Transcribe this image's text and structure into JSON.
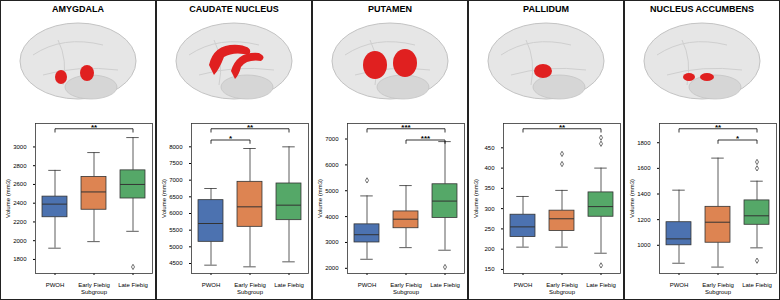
{
  "chart_data": [
    {
      "type": "box",
      "title": "AMYGDALA",
      "x_label": "Subgroup",
      "y_label": "Volume (mm3)",
      "categories": [
        "PWOH",
        "Early Fiebig",
        "Late Fiebig"
      ],
      "colors": [
        "#4c72b0",
        "#dd8452",
        "#55a868"
      ],
      "whisker_low": [
        1920,
        1990,
        2100
      ],
      "q1": [
        2250,
        2330,
        2450
      ],
      "median": [
        2390,
        2520,
        2600
      ],
      "q3": [
        2470,
        2680,
        2750
      ],
      "whisker_high": [
        2750,
        2940,
        3100
      ],
      "outliers": [
        [],
        [],
        [
          1720
        ]
      ],
      "ylim": [
        1650,
        3250
      ],
      "yticks": [
        1800,
        2000,
        2200,
        2400,
        2600,
        2800,
        3000
      ],
      "annotations": [
        {
          "from": "PWOH",
          "to": "Late Fiebig",
          "label": "**"
        }
      ]
    },
    {
      "type": "box",
      "title": "CAUDATE NUCLEUS",
      "x_label": "Subgroup",
      "y_label": "Volume (mm3)",
      "categories": [
        "PWOH",
        "Early Fiebig",
        "Late Fiebig"
      ],
      "colors": [
        "#4c72b0",
        "#dd8452",
        "#55a868"
      ],
      "whisker_low": [
        4450,
        4400,
        4550
      ],
      "q1": [
        5150,
        5600,
        5800
      ],
      "median": [
        5700,
        6200,
        6250
      ],
      "q3": [
        6400,
        6950,
        6900
      ],
      "whisker_high": [
        6750,
        7950,
        8000
      ],
      "outliers": [
        [],
        [],
        []
      ],
      "ylim": [
        4200,
        8700
      ],
      "yticks": [
        4500,
        5000,
        5500,
        6000,
        6500,
        7000,
        7500,
        8000
      ],
      "annotations": [
        {
          "from": "PWOH",
          "to": "Late Fiebig",
          "label": "**"
        },
        {
          "from": "PWOH",
          "to": "Early Fiebig",
          "label": "*"
        }
      ]
    },
    {
      "type": "box",
      "title": "PUTAMEN",
      "x_label": "Subgroup",
      "y_label": "Volume (mm3)",
      "categories": [
        "PWOH",
        "Early Fiebig",
        "Late Fiebig"
      ],
      "colors": [
        "#4c72b0",
        "#dd8452",
        "#55a868"
      ],
      "whisker_low": [
        2350,
        2800,
        2700
      ],
      "q1": [
        3000,
        3550,
        3950
      ],
      "median": [
        3300,
        3900,
        4600
      ],
      "q3": [
        3700,
        4200,
        5250
      ],
      "whisker_high": [
        4800,
        5200,
        6900
      ],
      "outliers": [
        [
          5400
        ],
        [],
        [
          2050
        ]
      ],
      "ylim": [
        1800,
        7600
      ],
      "yticks": [
        2000,
        3000,
        4000,
        5000,
        6000,
        7000
      ],
      "annotations": [
        {
          "from": "PWOH",
          "to": "Late Fiebig",
          "label": "***"
        },
        {
          "from": "Early Fiebig",
          "to": "Late Fiebig",
          "label": "***"
        }
      ]
    },
    {
      "type": "box",
      "title": "PALLIDUM",
      "x_label": "Subgroup",
      "y_label": "Volume (mm3)",
      "categories": [
        "PWOH",
        "Early Fiebig",
        "Late Fiebig"
      ],
      "colors": [
        "#4c72b0",
        "#dd8452",
        "#55a868"
      ],
      "whisker_low": [
        205,
        205,
        190
      ],
      "q1": [
        230,
        245,
        280
      ],
      "median": [
        255,
        275,
        305
      ],
      "q3": [
        285,
        295,
        340
      ],
      "whisker_high": [
        330,
        345,
        400
      ],
      "outliers": [
        [],
        [
          410,
          435
        ],
        [
          160,
          460,
          475
        ]
      ],
      "ylim": [
        140,
        510
      ],
      "yticks": [
        150,
        200,
        250,
        300,
        350,
        400,
        450
      ],
      "annotations": [
        {
          "from": "PWOH",
          "to": "Late Fiebig",
          "label": "**"
        }
      ]
    },
    {
      "type": "box",
      "title": "NUCLEUS ACCUMBENS",
      "x_label": "Subgroup",
      "y_label": "Volume (mm3)",
      "categories": [
        "PWOH",
        "Early Fiebig",
        "Late Fiebig"
      ],
      "colors": [
        "#4c72b0",
        "#dd8452",
        "#55a868"
      ],
      "whisker_low": [
        860,
        830,
        980
      ],
      "q1": [
        1000,
        1020,
        1160
      ],
      "median": [
        1050,
        1180,
        1230
      ],
      "q3": [
        1180,
        1300,
        1350
      ],
      "whisker_high": [
        1430,
        1680,
        1500
      ],
      "outliers": [
        [],
        [],
        [
          880,
          1600,
          1650
        ]
      ],
      "ylim": [
        780,
        1950
      ],
      "yticks": [
        1000,
        1200,
        1400,
        1600,
        1800
      ],
      "annotations": [
        {
          "from": "PWOH",
          "to": "Late Fiebig",
          "label": "**"
        },
        {
          "from": "Early Fiebig",
          "to": "Late Fiebig",
          "label": "*"
        }
      ]
    }
  ]
}
